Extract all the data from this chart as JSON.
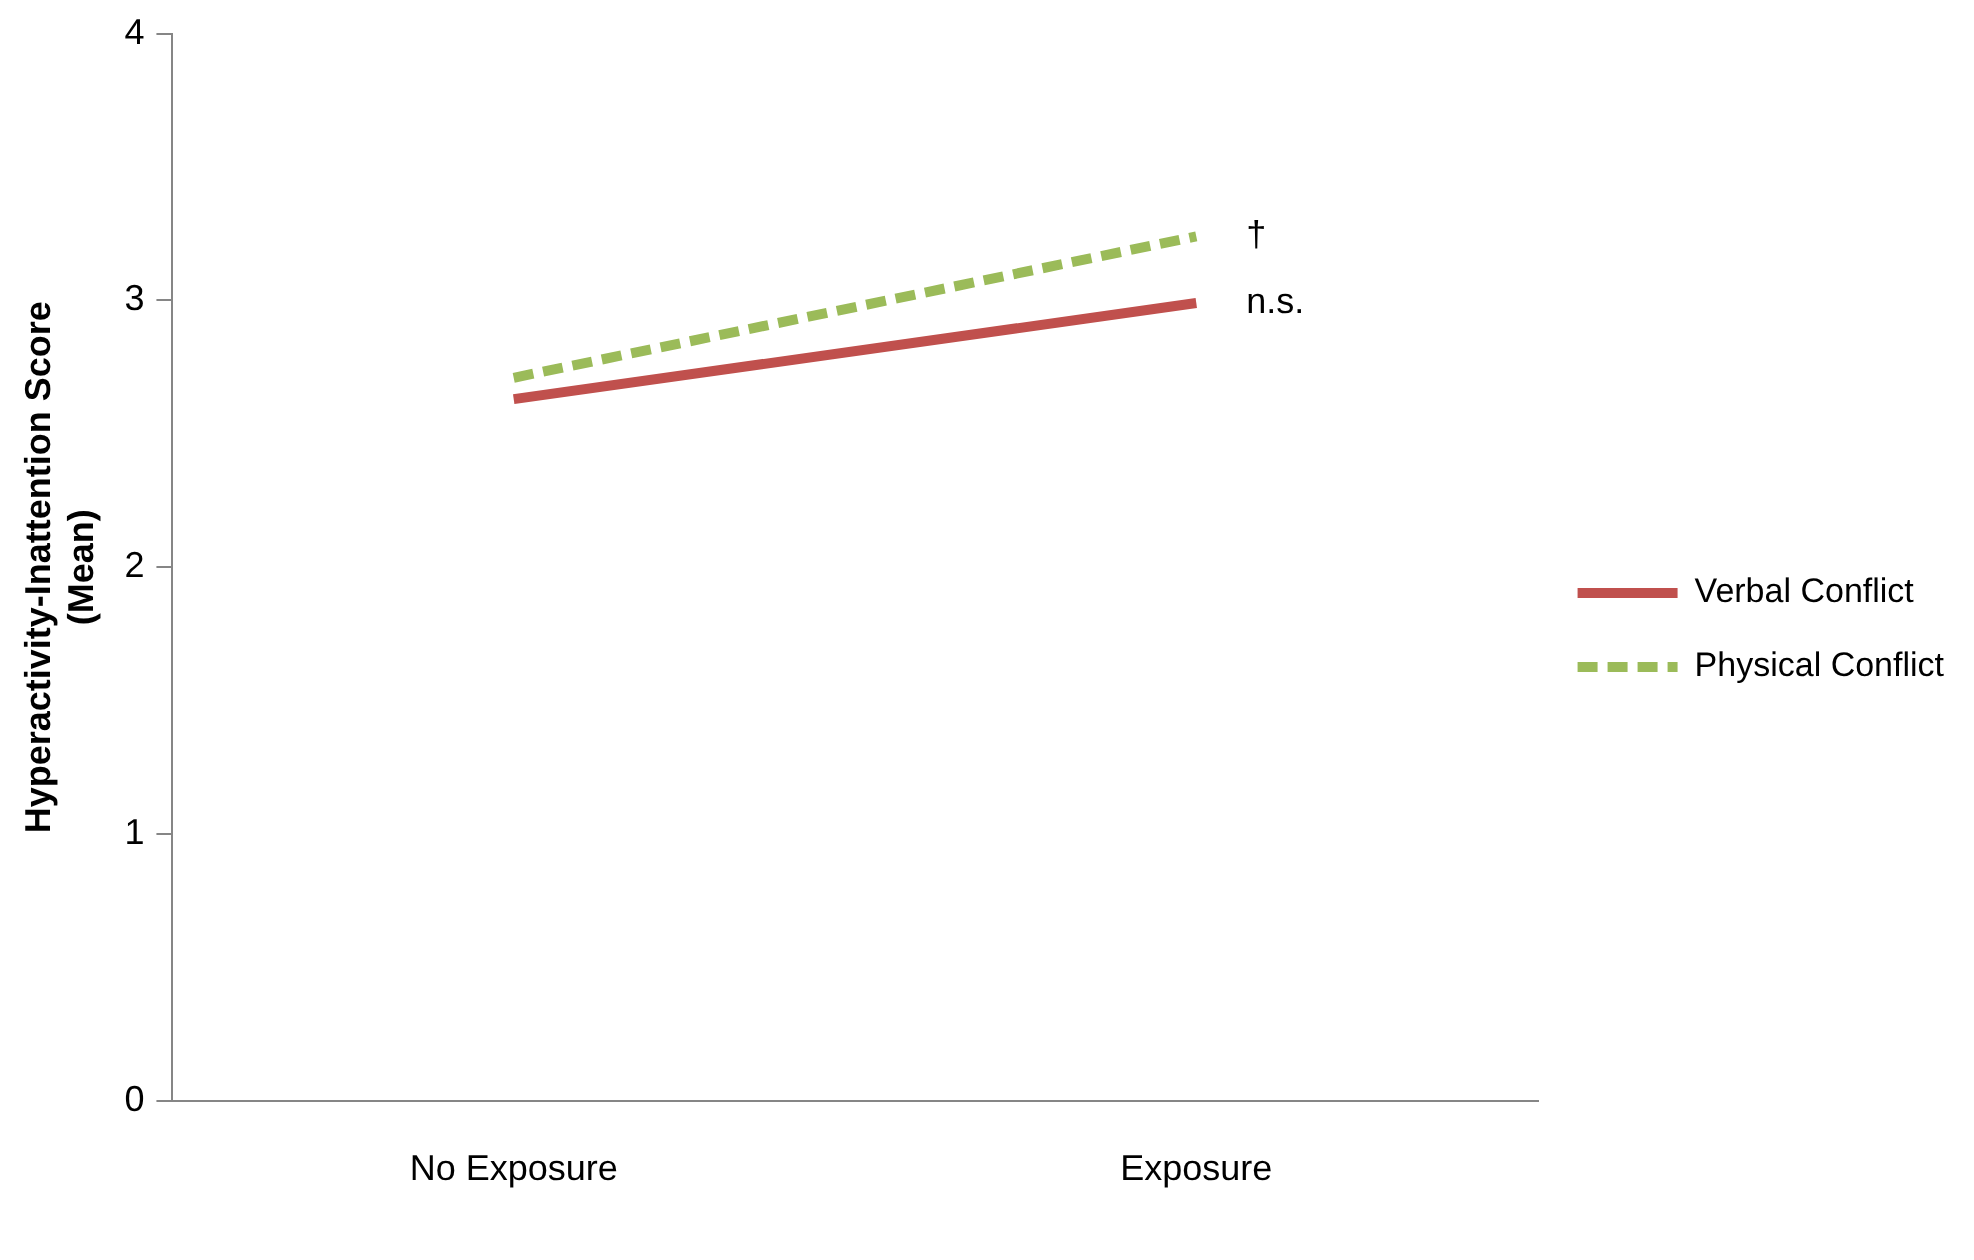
{
  "chart_data": {
    "type": "line",
    "ylabel": "Hyperactivity-Inattention Score\n(Mean)",
    "categories": [
      "No Exposure",
      "Exposure"
    ],
    "series": [
      {
        "name": "Verbal Conflict",
        "color": "#c0504d",
        "values": [
          2.63,
          2.99
        ],
        "line_style": "solid"
      },
      {
        "name": "Physical Conflict",
        "color": "#9bbb59",
        "values": [
          2.71,
          3.24
        ],
        "line_style": "dashed"
      }
    ],
    "ylim": [
      0,
      4
    ],
    "yticks": [
      0,
      1,
      2,
      3,
      4
    ],
    "grid": false,
    "legend": "right",
    "marker": "none",
    "annotations": [
      {
        "text": "†",
        "x": "Exposure",
        "y": 3.24
      },
      {
        "text": "n.s.",
        "x": "Exposure",
        "y": 2.99
      }
    ]
  }
}
